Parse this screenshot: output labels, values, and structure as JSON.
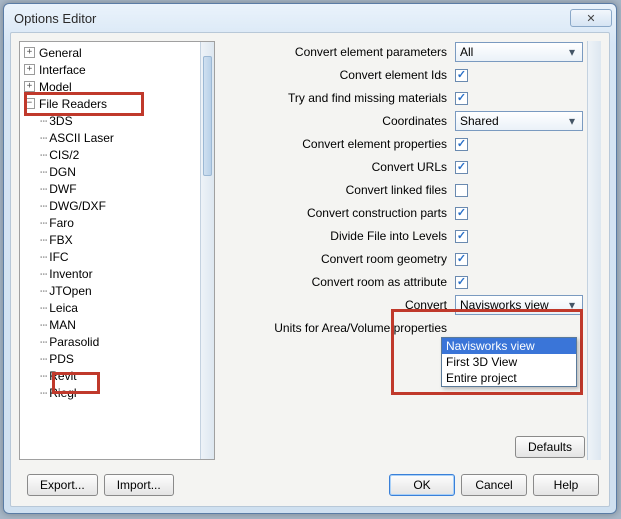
{
  "window": {
    "title": "Options Editor"
  },
  "tree": {
    "top": [
      {
        "label": "General",
        "expander": "plus"
      },
      {
        "label": "Interface",
        "expander": "plus"
      },
      {
        "label": "Model",
        "expander": "plus"
      }
    ],
    "fileReaders": {
      "label": "File Readers",
      "children": [
        "3DS",
        "ASCII Laser",
        "CIS/2",
        "DGN",
        "DWF",
        "DWG/DXF",
        "Faro",
        "FBX",
        "IFC",
        "Inventor",
        "JTOpen",
        "Leica",
        "MAN",
        "Parasolid",
        "PDS",
        "Revit",
        "Riegl"
      ]
    }
  },
  "settings": {
    "rows": [
      {
        "label": "Convert element parameters",
        "type": "select",
        "value": "All"
      },
      {
        "label": "Convert element Ids",
        "type": "check",
        "checked": true
      },
      {
        "label": "Try and find missing materials",
        "type": "check",
        "checked": true
      },
      {
        "label": "Coordinates",
        "type": "select",
        "value": "Shared"
      },
      {
        "label": "Convert element properties",
        "type": "check",
        "checked": true
      },
      {
        "label": "Convert URLs",
        "type": "check",
        "checked": true
      },
      {
        "label": "Convert linked files",
        "type": "check",
        "checked": false
      },
      {
        "label": "Convert construction parts",
        "type": "check",
        "checked": true
      },
      {
        "label": "Divide File into Levels",
        "type": "check",
        "checked": true
      },
      {
        "label": "Convert room geometry",
        "type": "check",
        "checked": true
      },
      {
        "label": "Convert room as attribute",
        "type": "check",
        "checked": true
      },
      {
        "label": "Convert",
        "type": "select",
        "value": "Navisworks view"
      },
      {
        "label": "Units for Area/Volume properties",
        "type": "dropdown_open"
      }
    ],
    "dropdown_options": [
      "Navisworks view",
      "First 3D View",
      "Entire project"
    ],
    "defaults_label": "Defaults"
  },
  "footer": {
    "export": "Export...",
    "import": "Import...",
    "ok": "OK",
    "cancel": "Cancel",
    "help": "Help"
  },
  "colors": {
    "highlight": "#c0392b",
    "selection": "#3a75d8"
  }
}
